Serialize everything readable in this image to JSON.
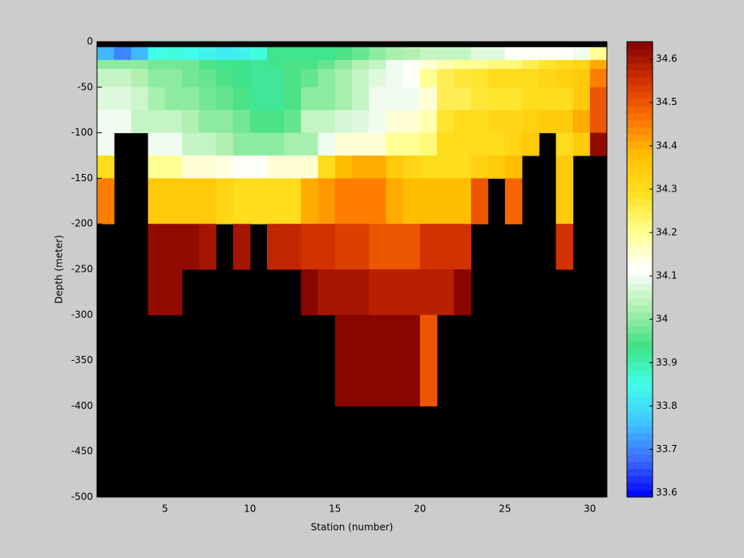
{
  "chart_data": {
    "type": "heatmap",
    "xlabel": "Station (number)",
    "ylabel": "Depth (meter)",
    "x_edges": [
      1,
      2,
      3,
      4,
      5,
      6,
      7,
      8,
      9,
      10,
      11,
      12,
      13,
      14,
      15,
      16,
      17,
      18,
      19,
      20,
      21,
      22,
      23,
      24,
      25,
      26,
      27,
      28,
      29,
      30,
      31
    ],
    "y_edges": [
      0,
      -6,
      -20,
      -30,
      -50,
      -75,
      -100,
      -125,
      -150,
      -200,
      -250,
      -300,
      -400
    ],
    "values": [
      [
        null,
        null,
        null,
        null,
        null,
        null,
        null,
        null,
        null,
        null,
        null,
        null,
        null,
        null,
        null,
        null,
        null,
        null,
        null,
        null,
        null,
        null,
        null,
        null,
        null,
        null,
        null,
        null,
        null,
        null
      ],
      [
        33.75,
        33.7,
        33.75,
        33.85,
        33.86,
        33.85,
        33.83,
        33.82,
        33.83,
        33.86,
        33.93,
        33.93,
        33.93,
        33.93,
        33.95,
        33.97,
        34.0,
        34.02,
        34.03,
        34.05,
        34.05,
        34.05,
        34.08,
        34.08,
        34.12,
        34.12,
        34.12,
        34.12,
        34.1,
        34.2
      ],
      [
        34.0,
        34.0,
        34.0,
        33.98,
        33.98,
        33.98,
        33.95,
        33.93,
        33.93,
        33.92,
        33.93,
        33.95,
        33.95,
        33.97,
        34.0,
        34.03,
        34.05,
        34.1,
        34.12,
        34.15,
        34.18,
        34.2,
        34.2,
        34.22,
        34.22,
        34.25,
        34.28,
        34.3,
        34.32,
        34.4
      ],
      [
        34.05,
        34.05,
        34.03,
        34.0,
        34.0,
        33.98,
        33.97,
        33.95,
        33.93,
        33.92,
        33.92,
        33.95,
        33.97,
        34.0,
        34.02,
        34.05,
        34.08,
        34.1,
        34.12,
        34.2,
        34.25,
        34.27,
        34.28,
        34.3,
        34.3,
        34.3,
        34.32,
        34.33,
        34.35,
        34.45
      ],
      [
        34.08,
        34.08,
        34.06,
        34.02,
        34.0,
        34.0,
        33.98,
        33.97,
        33.95,
        33.92,
        33.92,
        33.95,
        34.0,
        34.0,
        34.02,
        34.05,
        34.1,
        34.1,
        34.1,
        34.15,
        34.25,
        34.25,
        34.27,
        34.28,
        34.28,
        34.3,
        34.3,
        34.3,
        34.35,
        34.5
      ],
      [
        34.1,
        34.1,
        34.05,
        34.05,
        34.05,
        34.03,
        34.0,
        34.0,
        33.98,
        33.95,
        33.95,
        33.97,
        34.05,
        34.05,
        34.07,
        34.08,
        34.1,
        34.15,
        34.15,
        34.18,
        34.28,
        34.3,
        34.3,
        34.32,
        34.32,
        34.33,
        34.35,
        34.35,
        34.4,
        34.5
      ],
      [
        34.1,
        null,
        null,
        34.1,
        34.1,
        34.05,
        34.05,
        34.03,
        34.0,
        34.0,
        34.0,
        34.02,
        34.02,
        34.1,
        34.15,
        34.15,
        34.15,
        34.2,
        34.2,
        34.22,
        34.3,
        34.3,
        34.3,
        34.3,
        34.32,
        34.35,
        null,
        34.3,
        34.35,
        34.62
      ],
      [
        34.3,
        null,
        null,
        34.2,
        34.2,
        34.15,
        34.15,
        34.14,
        34.12,
        34.12,
        34.15,
        34.15,
        34.15,
        34.3,
        34.38,
        34.4,
        34.4,
        34.35,
        34.32,
        34.3,
        34.3,
        34.3,
        34.33,
        34.35,
        34.38,
        null,
        null,
        34.35,
        null,
        null
      ],
      [
        34.45,
        null,
        null,
        34.35,
        34.35,
        34.35,
        34.35,
        34.32,
        34.3,
        34.3,
        34.3,
        34.3,
        34.4,
        34.42,
        34.45,
        34.45,
        34.45,
        34.4,
        34.38,
        34.38,
        34.38,
        34.38,
        34.5,
        null,
        34.48,
        null,
        null,
        34.35,
        null,
        null
      ],
      [
        null,
        null,
        null,
        34.62,
        34.62,
        34.62,
        34.6,
        null,
        34.6,
        null,
        34.57,
        34.57,
        34.55,
        34.55,
        34.53,
        34.53,
        34.5,
        34.5,
        34.5,
        34.55,
        34.55,
        34.55,
        null,
        null,
        null,
        null,
        null,
        34.55,
        null,
        null
      ],
      [
        null,
        null,
        null,
        34.62,
        34.62,
        null,
        null,
        null,
        null,
        null,
        null,
        null,
        34.63,
        34.6,
        34.6,
        34.6,
        34.58,
        34.58,
        34.58,
        34.58,
        34.58,
        34.63,
        null,
        null,
        null,
        null,
        null,
        null,
        null,
        null
      ],
      [
        null,
        null,
        null,
        null,
        null,
        null,
        null,
        null,
        null,
        null,
        null,
        null,
        null,
        null,
        34.63,
        34.63,
        34.63,
        34.63,
        34.63,
        34.5,
        null,
        null,
        null,
        null,
        null,
        null,
        null,
        null,
        null,
        null
      ]
    ],
    "xlim": [
      1,
      31
    ],
    "ylim": [
      -500,
      0
    ],
    "xticks": [
      5,
      10,
      15,
      20,
      25,
      30
    ],
    "yticks": [
      0,
      -50,
      -100,
      -150,
      -200,
      -250,
      -300,
      -350,
      -400,
      -450,
      -500
    ],
    "clim": [
      33.59,
      34.64
    ],
    "cticks": [
      33.6,
      33.7,
      33.8,
      33.9,
      34,
      34.1,
      34.2,
      34.3,
      34.4,
      34.5,
      34.6
    ],
    "colormap": [
      "#0000ff",
      "#3c6cff",
      "#40c8ff",
      "#40ffe8",
      "#40e080",
      "#b0f0b0",
      "#ffffff",
      "#ffff90",
      "#ffe020",
      "#ffc000",
      "#ff7000",
      "#d03000",
      "#800000"
    ],
    "missing_color": "#000000"
  }
}
